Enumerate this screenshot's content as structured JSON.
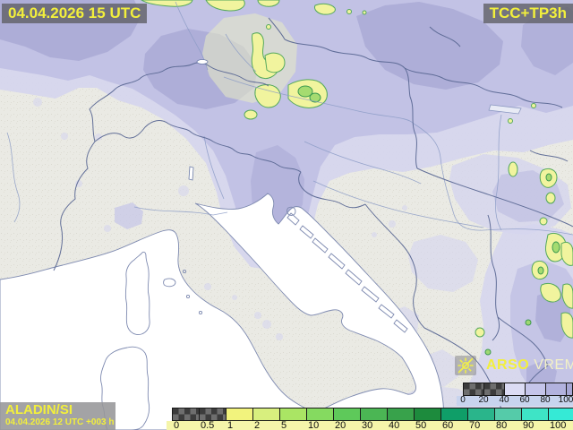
{
  "stamps": {
    "top_left": "04.04.2026 15 UTC",
    "top_right": "TCC+TP3h",
    "model": "ALADIN/SI",
    "run": "04.04.2026 12 UTC +003 h"
  },
  "branding": {
    "agency": "ARSO",
    "service": "VREME",
    "icon": "sun-icon",
    "agency_color": "#f2ef3e",
    "service_color": "#f3f1c6"
  },
  "legends": {
    "precipitation": {
      "ticks": [
        "0",
        "0.5",
        "1",
        "2",
        "5",
        "10",
        "20",
        "30",
        "40",
        "50",
        "60",
        "70",
        "80",
        "90",
        "100"
      ],
      "blocks": [
        {
          "type": "checker"
        },
        {
          "type": "checker"
        },
        {
          "type": "color",
          "color": "#f2f37d"
        },
        {
          "type": "color",
          "color": "#d8ef7e"
        },
        {
          "type": "color",
          "color": "#aae564"
        },
        {
          "type": "color",
          "color": "#85da60"
        },
        {
          "type": "color",
          "color": "#5ec95a"
        },
        {
          "type": "color",
          "color": "#4bb654"
        },
        {
          "type": "color",
          "color": "#38a24b"
        },
        {
          "type": "color",
          "color": "#1d8b3d"
        },
        {
          "type": "color",
          "color": "#0f9e68"
        },
        {
          "type": "color",
          "color": "#2ab58b"
        },
        {
          "type": "color",
          "color": "#55cba9"
        },
        {
          "type": "color",
          "color": "#3ee4c6"
        }
      ],
      "overflow_color": "#35ead6",
      "strip_bg": "#f5f5aa"
    },
    "cloud_cover": {
      "ticks": [
        "0",
        "20",
        "40",
        "60",
        "80",
        "100"
      ],
      "blocks": [
        {
          "type": "checker"
        },
        {
          "type": "checker"
        },
        {
          "type": "color",
          "color": "#dcdcf4"
        },
        {
          "type": "color",
          "color": "#c5c5ea"
        },
        {
          "type": "color",
          "color": "#b2b2de"
        }
      ],
      "overflow_color": "#a6a6d4",
      "strip_bg": "#c8d4ee"
    }
  },
  "map_colors": {
    "sea": "#ffffff",
    "land": "#eaeae4",
    "cloud_light": "#d5d5ee",
    "cloud_medium": "#c0c0e3",
    "cloud_dark": "#a9a9d5",
    "precip_cell_fill": "#f1f49e",
    "precip_cell_outline": "#55a95c",
    "border_line": "#5b6894",
    "river_line": "#8b9bc5",
    "coast_line": "#7e8ab0"
  }
}
